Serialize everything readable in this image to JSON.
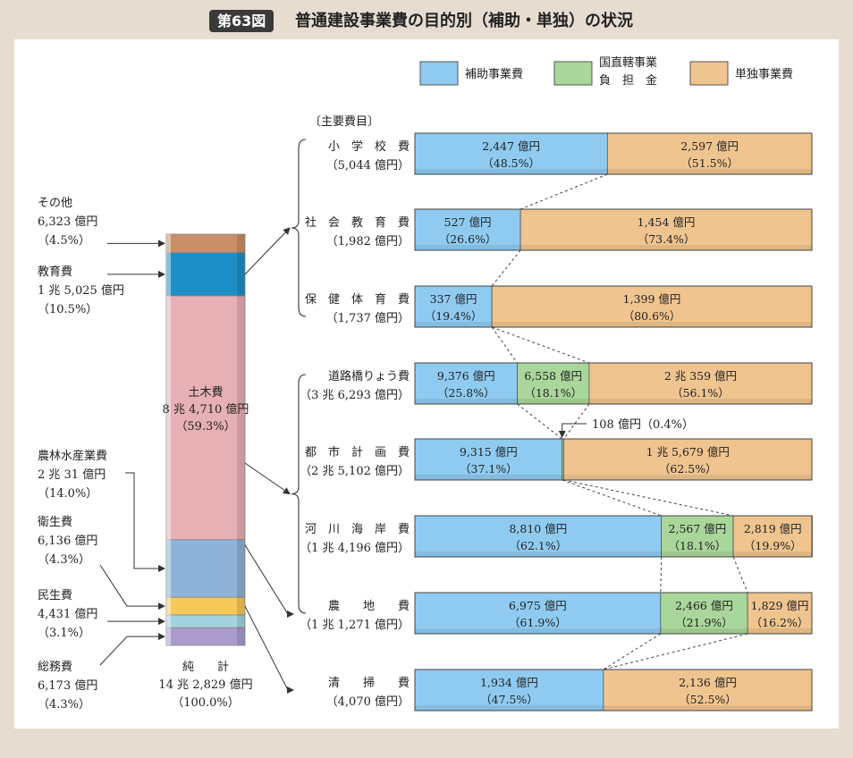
{
  "figure": {
    "badge": "第63図",
    "title": "普通建設事業費の目的別（補助・単独）の状況"
  },
  "colors": {
    "hojo": "#8fcbf0",
    "kokuchoku": "#a9d69a",
    "tandoku": "#efc48f",
    "sonota": "#c98f66",
    "kyoiku": "#1e8fc6",
    "doboku": "#e6b0b4",
    "norin": "#8fb3d8",
    "eisei": "#f6c85a",
    "minsei": "#a3d3e0",
    "somu": "#a99ccd"
  },
  "chart_data": {
    "type": "bar",
    "total_bar": {
      "caption_lines": [
        "純　　計",
        "14 兆 2,829 億円",
        "（100.0%）"
      ],
      "segments": [
        {
          "key": "sonota",
          "percent": 4.5,
          "color_key": "sonota",
          "label_lines": [
            "その他",
            "6,323 億円",
            "（4.5%）"
          ]
        },
        {
          "key": "kyoiku",
          "percent": 10.5,
          "color_key": "kyoiku",
          "label_lines": [
            "教育費",
            "1 兆 5,025 億円",
            "（10.5%）"
          ]
        },
        {
          "key": "doboku",
          "percent": 59.3,
          "color_key": "doboku",
          "label_lines": [
            "土木費",
            "8 兆 4,710 億円",
            "（59.3%）"
          ]
        },
        {
          "key": "norin",
          "percent": 14.0,
          "color_key": "norin",
          "label_lines": [
            "農林水産業費",
            "2 兆 31 億円",
            "（14.0%）"
          ]
        },
        {
          "key": "eisei",
          "percent": 4.3,
          "color_key": "eisei",
          "label_lines": [
            "衛生費",
            "6,136 億円",
            "（4.3%）"
          ]
        },
        {
          "key": "minsei",
          "percent": 3.1,
          "color_key": "minsei",
          "label_lines": [
            "民生費",
            "4,431 億円",
            "（3.1%）"
          ]
        },
        {
          "key": "somu",
          "percent": 4.3,
          "color_key": "somu",
          "label_lines": [
            "総務費",
            "6,173 億円",
            "（4.3%）"
          ]
        }
      ]
    },
    "legend": [
      {
        "color_key": "hojo",
        "lines": [
          "補助事業費"
        ]
      },
      {
        "color_key": "kokuchoku",
        "lines": [
          "国直轄事業",
          "負　担　金"
        ]
      },
      {
        "color_key": "tandoku",
        "lines": [
          "単独事業費"
        ]
      }
    ],
    "major_items_header": "〔主要費目〕",
    "rows": [
      {
        "name": "小　学　校　費",
        "total": "（5,044 億円）",
        "segments": [
          {
            "type": "hojo",
            "percent": 48.5,
            "amount": "2,447 億円",
            "share": "（48.5%）"
          },
          {
            "type": "tandoku",
            "percent": 51.5,
            "amount": "2,597 億円",
            "share": "（51.5%）"
          }
        ]
      },
      {
        "name": "社　会　教　育　費",
        "total": "（1,982 億円）",
        "segments": [
          {
            "type": "hojo",
            "percent": 26.6,
            "amount": "527 億円",
            "share": "（26.6%）"
          },
          {
            "type": "tandoku",
            "percent": 73.4,
            "amount": "1,454 億円",
            "share": "（73.4%）"
          }
        ]
      },
      {
        "name": "保　健　体　育　費",
        "total": "（1,737 億円）",
        "segments": [
          {
            "type": "hojo",
            "percent": 19.4,
            "amount": "337 億円",
            "share": "（19.4%）"
          },
          {
            "type": "tandoku",
            "percent": 80.6,
            "amount": "1,399 億円",
            "share": "（80.6%）"
          }
        ]
      },
      {
        "name": "道路橋りょう費",
        "total": "（3 兆 6,293 億円）",
        "segments": [
          {
            "type": "hojo",
            "percent": 25.8,
            "amount": "9,376 億円",
            "share": "（25.8%）"
          },
          {
            "type": "kokuchoku",
            "percent": 18.1,
            "amount": "6,558 億円",
            "share": "（18.1%）"
          },
          {
            "type": "tandoku",
            "percent": 56.1,
            "amount": "2 兆 359 億円",
            "share": "（56.1%）"
          }
        ]
      },
      {
        "name": "都　市　計　画　費",
        "total": "（2 兆 5,102 億円）",
        "segments": [
          {
            "type": "hojo",
            "percent": 37.1,
            "amount": "9,315 億円",
            "share": "（37.1%）"
          },
          {
            "type": "kokuchoku",
            "percent": 0.4,
            "amount": "",
            "share": ""
          },
          {
            "type": "tandoku",
            "percent": 62.5,
            "amount": "1 兆 5,679 億円",
            "share": "（62.5%）"
          }
        ]
      },
      {
        "name": "河　川　海　岸　費",
        "total": "（1 兆 4,196 億円）",
        "segments": [
          {
            "type": "hojo",
            "percent": 62.1,
            "amount": "8,810 億円",
            "share": "（62.1%）"
          },
          {
            "type": "kokuchoku",
            "percent": 18.1,
            "amount": "2,567 億円",
            "share": "（18.1%）"
          },
          {
            "type": "tandoku",
            "percent": 19.9,
            "amount": "2,819 億円",
            "share": "（19.9%）"
          }
        ]
      },
      {
        "name": "農　　地　　費",
        "total": "（1 兆 1,271 億円）",
        "segments": [
          {
            "type": "hojo",
            "percent": 61.9,
            "amount": "6,975 億円",
            "share": "（61.9%）"
          },
          {
            "type": "kokuchoku",
            "percent": 21.9,
            "amount": "2,466 億円",
            "share": "（21.9%）"
          },
          {
            "type": "tandoku",
            "percent": 16.2,
            "amount": "1,829 億円",
            "share": "（16.2%）"
          }
        ]
      },
      {
        "name": "清　　掃　　費",
        "total": "（4,070 億円）",
        "segments": [
          {
            "type": "hojo",
            "percent": 47.5,
            "amount": "1,934 億円",
            "share": "（47.5%）"
          },
          {
            "type": "tandoku",
            "percent": 52.5,
            "amount": "2,136 億円",
            "share": "（52.5%）"
          }
        ]
      }
    ],
    "annotation": "108 億円（0.4%）"
  }
}
